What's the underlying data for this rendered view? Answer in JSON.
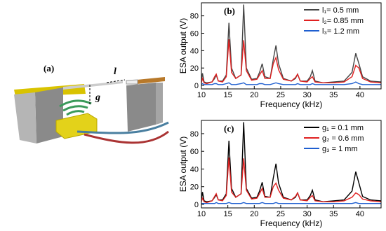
{
  "diagram": {
    "label": "(a)",
    "gap_label": "l",
    "height_label": "g"
  },
  "chart_data": [
    {
      "type": "line",
      "panel_label": "(b)",
      "x_label": "Frequency (kHz)",
      "y_label": "ESA output (V)",
      "xlim": [
        10,
        44
      ],
      "ylim": [
        -4,
        95
      ],
      "xticks": [
        10,
        15,
        20,
        25,
        30,
        35,
        40
      ],
      "yticks": [
        0,
        20,
        40,
        60,
        80
      ],
      "legend": "top-right",
      "x": [
        10,
        10.2,
        10.5,
        11,
        12,
        12.5,
        12.8,
        13.2,
        14,
        14.7,
        15.2,
        15.7,
        16.5,
        17.5,
        18,
        18.5,
        19.5,
        20.5,
        21,
        21.5,
        22,
        23,
        23.6,
        24.1,
        24.6,
        25.5,
        27,
        27.8,
        28.2,
        28.7,
        30,
        30.6,
        31,
        31.5,
        33,
        35,
        37,
        38.5,
        39.2,
        39.8,
        40.5,
        42,
        44
      ],
      "series": [
        {
          "name": "l₁= 0.5 mm",
          "color": "#444444",
          "values": [
            5,
            14,
            4,
            3,
            4,
            8,
            12,
            5,
            5,
            12,
            72,
            20,
            8,
            12,
            93,
            20,
            7,
            8,
            15,
            25,
            10,
            8,
            30,
            46,
            25,
            8,
            5,
            8,
            13,
            5,
            5,
            10,
            17,
            5,
            3,
            4,
            5,
            15,
            37,
            25,
            10,
            5,
            4
          ]
        },
        {
          "name": "l₂= 0.85 mm",
          "color": "#e02020",
          "values": [
            3,
            8,
            3,
            2,
            4,
            10,
            13,
            5,
            4,
            10,
            53,
            15,
            8,
            12,
            52,
            17,
            6,
            7,
            12,
            17,
            8,
            8,
            25,
            32,
            18,
            7,
            5,
            9,
            13,
            5,
            4,
            8,
            10,
            4,
            3,
            3,
            4,
            10,
            23,
            20,
            8,
            4,
            3
          ]
        },
        {
          "name": "l₃= 1.2 mm",
          "color": "#1f5fd0",
          "values": [
            1,
            2,
            1,
            1,
            1,
            2,
            2,
            1,
            1,
            2,
            3,
            1,
            1,
            2,
            3,
            1,
            1,
            1,
            2,
            2,
            1,
            1,
            2,
            3,
            2,
            1,
            1,
            1,
            2,
            1,
            1,
            1,
            2,
            1,
            1,
            1,
            1,
            2,
            4,
            2,
            1,
            1,
            1
          ]
        }
      ]
    },
    {
      "type": "line",
      "panel_label": "(c)",
      "x_label": "Frequency (kHz)",
      "y_label": "ESA output (V)",
      "xlim": [
        10,
        44
      ],
      "ylim": [
        -4,
        95
      ],
      "xticks": [
        10,
        15,
        20,
        25,
        30,
        35,
        40
      ],
      "yticks": [
        0,
        20,
        40,
        60,
        80
      ],
      "legend": "top-right",
      "x": [
        10,
        10.2,
        10.5,
        11,
        12,
        12.5,
        12.8,
        13.2,
        14,
        14.7,
        15.2,
        15.7,
        16.5,
        17.5,
        18,
        18.5,
        19.5,
        20.5,
        21,
        21.5,
        22,
        23,
        23.6,
        24.1,
        24.6,
        25.5,
        27,
        27.8,
        28.2,
        28.7,
        30,
        30.6,
        31,
        31.5,
        33,
        35,
        37,
        38.5,
        39.2,
        39.8,
        40.5,
        42,
        44
      ],
      "series": [
        {
          "name": "g₁ = 0.1 mm",
          "color": "#000000",
          "values": [
            4,
            14,
            4,
            3,
            4,
            8,
            11,
            5,
            5,
            12,
            72,
            18,
            8,
            12,
            93,
            18,
            7,
            8,
            15,
            25,
            9,
            8,
            30,
            46,
            24,
            8,
            5,
            8,
            13,
            5,
            5,
            10,
            16,
            5,
            3,
            4,
            5,
            15,
            37,
            24,
            9,
            5,
            4
          ]
        },
        {
          "name": "g₂ = 0.6 mm",
          "color": "#e02020",
          "values": [
            3,
            7,
            3,
            2,
            4,
            9,
            12,
            5,
            4,
            10,
            53,
            14,
            8,
            12,
            52,
            16,
            6,
            7,
            12,
            18,
            8,
            8,
            20,
            24,
            16,
            7,
            5,
            9,
            13,
            5,
            4,
            8,
            10,
            4,
            3,
            3,
            4,
            8,
            13,
            11,
            6,
            4,
            3
          ]
        },
        {
          "name": "g₃ = 1 mm",
          "color": "#1f5fd0",
          "values": [
            1,
            1,
            1,
            1,
            1,
            1,
            2,
            1,
            1,
            1,
            2,
            1,
            1,
            1,
            2,
            1,
            1,
            1,
            1,
            2,
            1,
            1,
            1,
            2,
            1,
            1,
            1,
            1,
            1,
            1,
            1,
            1,
            1,
            1,
            1,
            1,
            1,
            1,
            2,
            1,
            1,
            1,
            1
          ]
        }
      ]
    }
  ]
}
